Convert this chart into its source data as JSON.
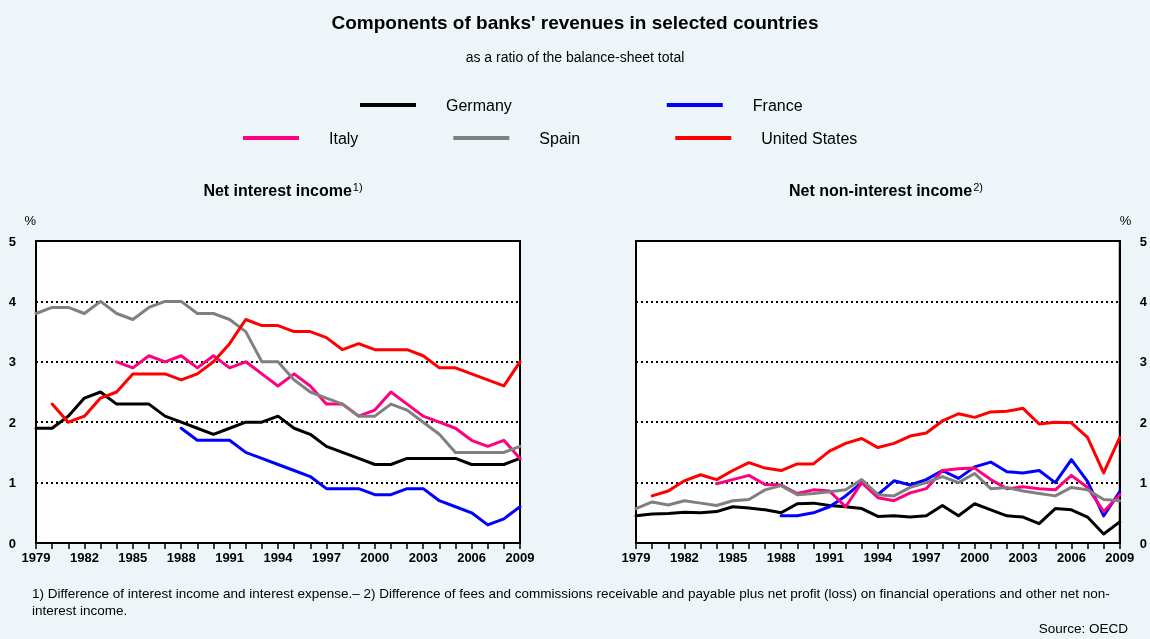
{
  "chart_data": [
    {
      "type": "other",
      "title": "Components of banks' revenues in selected countries",
      "subtitle": "as a ratio of the balance-sheet total",
      "annotations": [
        "1) Difference of interest income and interest expense.– 2) Difference of fees and commissions receivable and payable plus net profit (loss) on financial operations and other net non-interest income.",
        "Source: OECD"
      ]
    },
    {
      "type": "line",
      "title": "Net interest income$^{1)}$",
      "ylabel": "%",
      "legend": "top",
      "grid": "y",
      "marker": "none",
      "line_style": "solid",
      "x": [
        1979,
        1980,
        1981,
        1982,
        1983,
        1984,
        1985,
        1986,
        1987,
        1988,
        1989,
        1990,
        1991,
        1992,
        1993,
        1994,
        1995,
        1996,
        1997,
        1998,
        1999,
        2000,
        2001,
        2002,
        2003,
        2004,
        2005,
        2006,
        2007,
        2008,
        2009
      ],
      "xlim": [
        1979,
        2009
      ],
      "xticks": [
        1979,
        {
          "value": 1980,
          "label": null
        },
        {
          "value": 1981,
          "label": null
        },
        1982,
        {
          "value": 1983,
          "label": null
        },
        {
          "value": 1984,
          "label": null
        },
        1985,
        {
          "value": 1986,
          "label": null
        },
        {
          "value": 1987,
          "label": null
        },
        1988,
        {
          "value": 1989,
          "label": null
        },
        {
          "value": 1990,
          "label": null
        },
        1991,
        {
          "value": 1992,
          "label": null
        },
        {
          "value": 1993,
          "label": null
        },
        1994,
        {
          "value": 1995,
          "label": null
        },
        {
          "value": 1996,
          "label": null
        },
        1997,
        {
          "value": 1998,
          "label": null
        },
        {
          "value": 1999,
          "label": null
        },
        2000,
        {
          "value": 2001,
          "label": null
        },
        {
          "value": 2002,
          "label": null
        },
        2003,
        {
          "value": 2004,
          "label": null
        },
        {
          "value": 2005,
          "label": null
        },
        2006,
        {
          "value": 2007,
          "label": null
        },
        {
          "value": 2008,
          "label": null
        },
        2009
      ],
      "ylim": [
        0,
        5
      ],
      "yticks": [
        0,
        1,
        2,
        3,
        4,
        5
      ],
      "series": [
        {
          "name": "Germany",
          "color": "#000000",
          "values": [
            1.9,
            1.9,
            2.1,
            2.4,
            2.5,
            2.3,
            2.3,
            2.3,
            2.1,
            2.0,
            1.9,
            1.8,
            1.9,
            2.0,
            2.0,
            2.1,
            1.9,
            1.8,
            1.6,
            1.5,
            1.4,
            1.3,
            1.3,
            1.4,
            1.4,
            1.4,
            1.4,
            1.3,
            1.3,
            1.3,
            1.4
          ]
        },
        {
          "name": "France",
          "color": "#0000ff",
          "values": [
            null,
            null,
            null,
            null,
            null,
            null,
            null,
            null,
            null,
            1.9,
            1.7,
            1.7,
            1.7,
            1.5,
            1.4,
            1.3,
            1.2,
            1.1,
            0.9,
            0.9,
            0.9,
            0.8,
            0.8,
            0.9,
            0.9,
            0.7,
            0.6,
            0.5,
            0.3,
            0.4,
            0.6
          ]
        },
        {
          "name": "Italy",
          "color": "#ff0080",
          "values": [
            null,
            null,
            null,
            null,
            null,
            3.0,
            2.9,
            3.1,
            3.0,
            3.1,
            2.9,
            3.1,
            2.9,
            3.0,
            2.8,
            2.6,
            2.8,
            2.6,
            2.3,
            2.3,
            2.1,
            2.2,
            2.5,
            2.3,
            2.1,
            2.0,
            1.9,
            1.7,
            1.6,
            1.7,
            1.4
          ]
        },
        {
          "name": "Spain",
          "color": "#808080",
          "values": [
            3.8,
            3.9,
            3.9,
            3.8,
            4.0,
            3.8,
            3.7,
            3.9,
            4.0,
            4.0,
            3.8,
            3.8,
            3.7,
            3.5,
            3.0,
            3.0,
            2.7,
            2.5,
            2.4,
            2.3,
            2.1,
            2.1,
            2.3,
            2.2,
            2.0,
            1.8,
            1.5,
            1.5,
            1.5,
            1.5,
            1.6
          ]
        },
        {
          "name": "United States",
          "color": "#ff0000",
          "values": [
            null,
            2.3,
            2.0,
            2.1,
            2.4,
            2.5,
            2.8,
            2.8,
            2.8,
            2.7,
            2.8,
            3.0,
            3.3,
            3.7,
            3.6,
            3.6,
            3.5,
            3.5,
            3.4,
            3.2,
            3.3,
            3.2,
            3.2,
            3.2,
            3.1,
            2.9,
            2.9,
            2.8,
            2.7,
            2.6,
            3.0
          ]
        }
      ]
    },
    {
      "type": "line",
      "title": "Net non-interest income$^{2)}$",
      "ylabel": "%",
      "grid": "y",
      "marker": "none",
      "line_style": "solid",
      "x": [
        1979,
        1980,
        1981,
        1982,
        1983,
        1984,
        1985,
        1986,
        1987,
        1988,
        1989,
        1990,
        1991,
        1992,
        1993,
        1994,
        1995,
        1996,
        1997,
        1998,
        1999,
        2000,
        2001,
        2002,
        2003,
        2004,
        2005,
        2006,
        2007,
        2008,
        2009
      ],
      "xlim": [
        1979,
        2009
      ],
      "xticks": [
        1979,
        {
          "value": 1980,
          "label": null
        },
        {
          "value": 1981,
          "label": null
        },
        1982,
        {
          "value": 1983,
          "label": null
        },
        {
          "value": 1984,
          "label": null
        },
        1985,
        {
          "value": 1986,
          "label": null
        },
        {
          "value": 1987,
          "label": null
        },
        1988,
        {
          "value": 1989,
          "label": null
        },
        {
          "value": 1990,
          "label": null
        },
        1991,
        {
          "value": 1992,
          "label": null
        },
        {
          "value": 1993,
          "label": null
        },
        1994,
        {
          "value": 1995,
          "label": null
        },
        {
          "value": 1996,
          "label": null
        },
        1997,
        {
          "value": 1998,
          "label": null
        },
        {
          "value": 1999,
          "label": null
        },
        2000,
        {
          "value": 2001,
          "label": null
        },
        {
          "value": 2002,
          "label": null
        },
        2003,
        {
          "value": 2004,
          "label": null
        },
        {
          "value": 2005,
          "label": null
        },
        2006,
        {
          "value": 2007,
          "label": null
        },
        {
          "value": 2008,
          "label": null
        },
        2009
      ],
      "ylim": [
        0,
        5
      ],
      "yticks": [
        0,
        1,
        2,
        3,
        4,
        5
      ],
      "series": [
        {
          "color": "#000000",
          "values": [
            0.45,
            0.48,
            0.49,
            0.51,
            0.5,
            0.52,
            0.6,
            0.58,
            0.55,
            0.5,
            0.65,
            0.66,
            0.62,
            0.6,
            0.57,
            0.44,
            0.45,
            0.43,
            0.45,
            0.62,
            0.45,
            0.65,
            0.55,
            0.45,
            0.43,
            0.32,
            0.57,
            0.55,
            0.43,
            0.15,
            0.35
          ]
        },
        {
          "color": "#0000ff",
          "values": [
            null,
            null,
            null,
            null,
            null,
            null,
            null,
            null,
            null,
            0.45,
            0.45,
            0.5,
            0.6,
            0.78,
            1.0,
            0.8,
            1.03,
            0.96,
            1.05,
            1.2,
            1.07,
            1.26,
            1.34,
            1.18,
            1.16,
            1.2,
            1.0,
            1.38,
            1.02,
            0.45,
            0.85
          ]
        },
        {
          "color": "#ff0080",
          "values": [
            null,
            null,
            null,
            null,
            null,
            0.98,
            1.05,
            1.12,
            0.97,
            0.96,
            0.82,
            0.88,
            0.86,
            0.6,
            1.0,
            0.75,
            0.7,
            0.83,
            0.9,
            1.2,
            1.23,
            1.24,
            1.05,
            0.9,
            0.93,
            0.9,
            0.88,
            1.12,
            0.92,
            0.52,
            0.8
          ]
        },
        {
          "color": "#808080",
          "values": [
            0.57,
            0.68,
            0.63,
            0.7,
            0.66,
            0.62,
            0.7,
            0.72,
            0.88,
            0.95,
            0.8,
            0.82,
            0.85,
            0.88,
            1.05,
            0.8,
            0.78,
            0.92,
            1.0,
            1.1,
            1.0,
            1.15,
            0.9,
            0.92,
            0.86,
            0.82,
            0.78,
            0.92,
            0.88,
            0.72,
            0.7
          ]
        },
        {
          "color": "#ff0000",
          "values": [
            null,
            0.78,
            0.86,
            1.03,
            1.13,
            1.05,
            1.2,
            1.33,
            1.24,
            1.2,
            1.31,
            1.31,
            1.52,
            1.65,
            1.73,
            1.58,
            1.65,
            1.77,
            1.82,
            2.02,
            2.14,
            2.08,
            2.17,
            2.18,
            2.23,
            1.97,
            2.0,
            1.99,
            1.75,
            1.16,
            1.75
          ]
        }
      ]
    }
  ]
}
